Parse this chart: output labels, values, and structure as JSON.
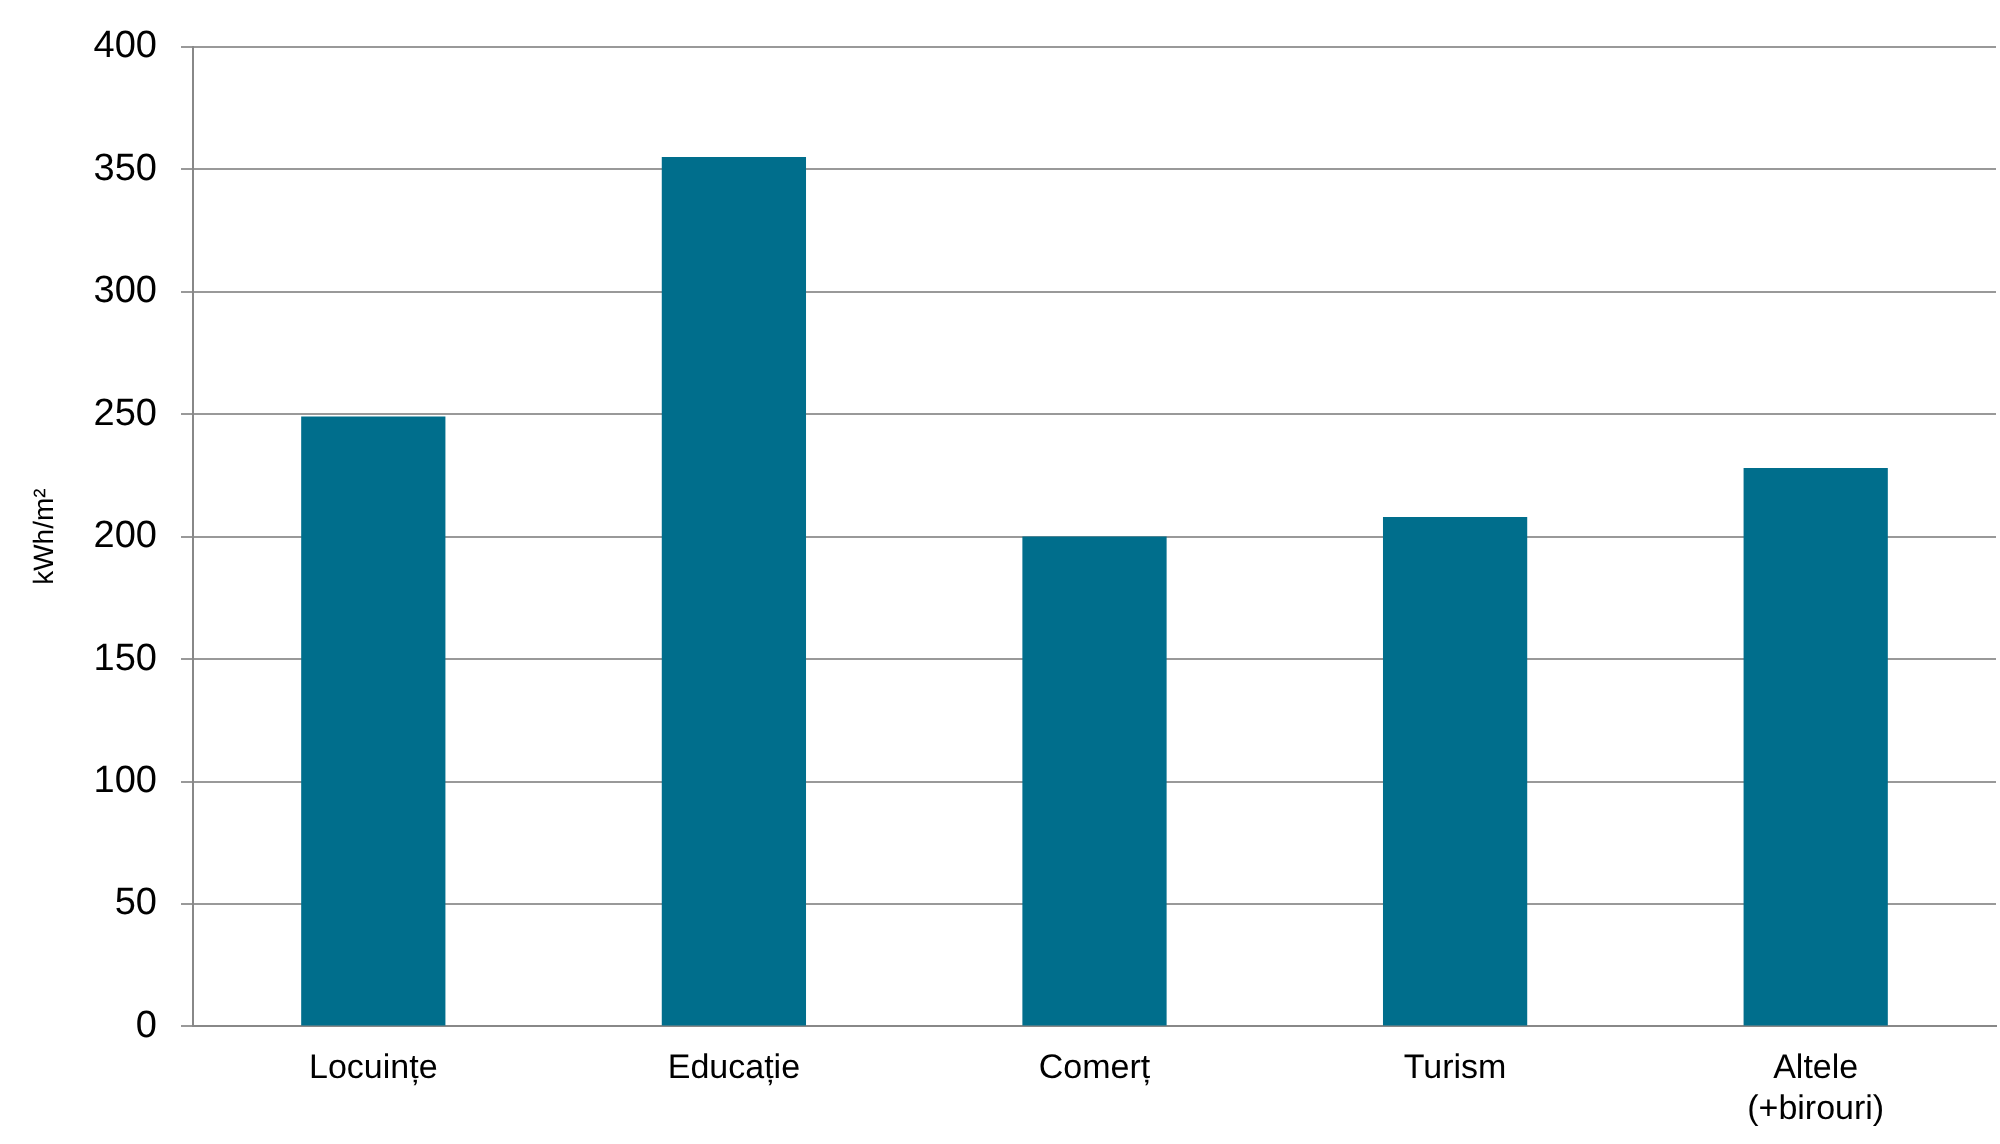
{
  "chart_data": {
    "type": "bar",
    "ylabel": "kWh/m²",
    "categories": [
      "Locuințe",
      "Educație",
      "Comerț",
      "Turism",
      "Altele (+birouri)"
    ],
    "values": [
      249,
      355,
      200,
      208,
      228
    ],
    "color": "#006e8c",
    "ylim": [
      0,
      400
    ],
    "yticks": [
      0,
      50,
      100,
      150,
      200,
      250,
      300,
      350,
      400
    ],
    "grid": "y",
    "legend": false
  }
}
